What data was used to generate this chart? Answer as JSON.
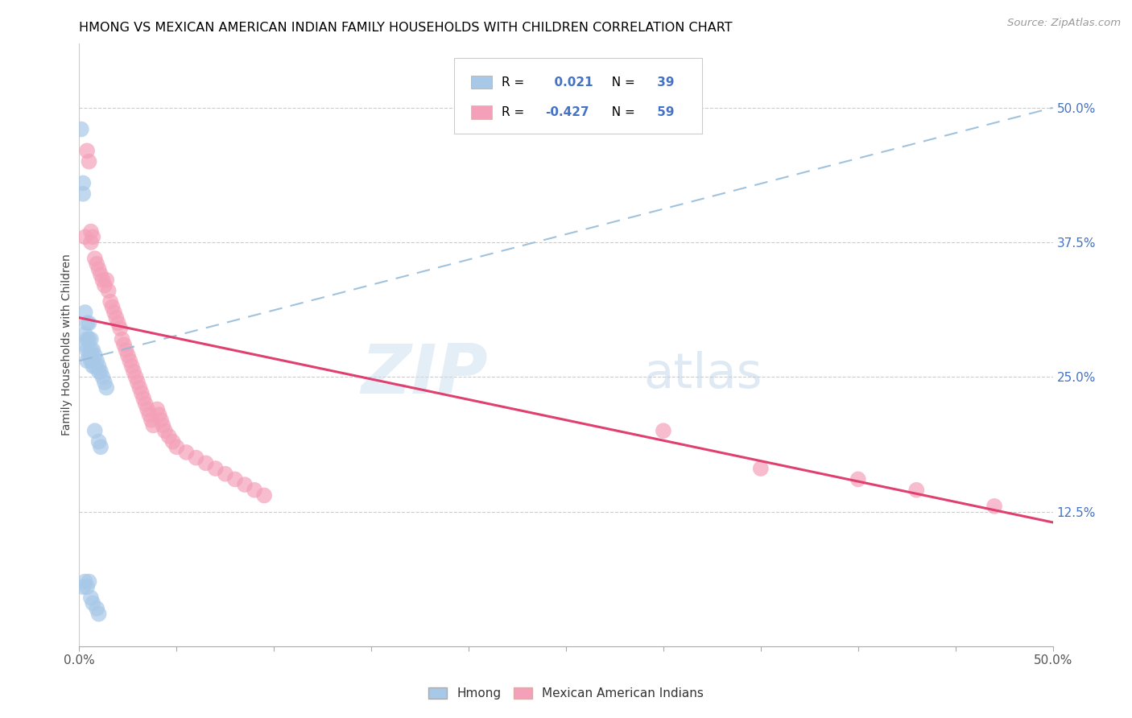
{
  "title": "HMONG VS MEXICAN AMERICAN INDIAN FAMILY HOUSEHOLDS WITH CHILDREN CORRELATION CHART",
  "source": "Source: ZipAtlas.com",
  "ylabel": "Family Households with Children",
  "watermark_zip": "ZIP",
  "watermark_atlas": "atlas",
  "xlim": [
    0.0,
    0.5
  ],
  "ylim": [
    0.0,
    0.56
  ],
  "yticks_right": [
    0.125,
    0.25,
    0.375,
    0.5
  ],
  "ytick_labels_right": [
    "12.5%",
    "25.0%",
    "37.5%",
    "50.0%"
  ],
  "hmong_color": "#a8c8e8",
  "mexican_color": "#f4a0b8",
  "hmong_line_color": "#90b8d8",
  "mexican_line_color": "#e04070",
  "R_hmong": 0.021,
  "N_hmong": 39,
  "R_mexican": -0.427,
  "N_mexican": 59,
  "hmong_x": [
    0.001,
    0.002,
    0.002,
    0.002,
    0.003,
    0.003,
    0.003,
    0.003,
    0.004,
    0.004,
    0.004,
    0.004,
    0.004,
    0.005,
    0.005,
    0.005,
    0.005,
    0.006,
    0.006,
    0.006,
    0.006,
    0.007,
    0.007,
    0.007,
    0.007,
    0.008,
    0.008,
    0.008,
    0.009,
    0.009,
    0.01,
    0.01,
    0.01,
    0.01,
    0.011,
    0.011,
    0.012,
    0.013,
    0.014
  ],
  "hmong_y": [
    0.48,
    0.43,
    0.42,
    0.055,
    0.31,
    0.29,
    0.28,
    0.06,
    0.3,
    0.285,
    0.275,
    0.265,
    0.055,
    0.3,
    0.285,
    0.27,
    0.06,
    0.285,
    0.275,
    0.265,
    0.045,
    0.275,
    0.265,
    0.26,
    0.04,
    0.27,
    0.26,
    0.2,
    0.265,
    0.035,
    0.26,
    0.255,
    0.19,
    0.03,
    0.255,
    0.185,
    0.25,
    0.245,
    0.24
  ],
  "mexican_x": [
    0.003,
    0.004,
    0.005,
    0.006,
    0.006,
    0.007,
    0.008,
    0.009,
    0.01,
    0.011,
    0.012,
    0.013,
    0.014,
    0.015,
    0.016,
    0.017,
    0.018,
    0.019,
    0.02,
    0.021,
    0.022,
    0.023,
    0.024,
    0.025,
    0.026,
    0.027,
    0.028,
    0.029,
    0.03,
    0.031,
    0.032,
    0.033,
    0.034,
    0.035,
    0.036,
    0.037,
    0.038,
    0.04,
    0.041,
    0.042,
    0.043,
    0.044,
    0.046,
    0.048,
    0.05,
    0.055,
    0.06,
    0.065,
    0.07,
    0.075,
    0.08,
    0.085,
    0.09,
    0.095,
    0.3,
    0.35,
    0.4,
    0.43,
    0.47
  ],
  "mexican_y": [
    0.38,
    0.46,
    0.45,
    0.385,
    0.375,
    0.38,
    0.36,
    0.355,
    0.35,
    0.345,
    0.34,
    0.335,
    0.34,
    0.33,
    0.32,
    0.315,
    0.31,
    0.305,
    0.3,
    0.295,
    0.285,
    0.28,
    0.275,
    0.27,
    0.265,
    0.26,
    0.255,
    0.25,
    0.245,
    0.24,
    0.235,
    0.23,
    0.225,
    0.22,
    0.215,
    0.21,
    0.205,
    0.22,
    0.215,
    0.21,
    0.205,
    0.2,
    0.195,
    0.19,
    0.185,
    0.18,
    0.175,
    0.17,
    0.165,
    0.16,
    0.155,
    0.15,
    0.145,
    0.14,
    0.2,
    0.165,
    0.155,
    0.145,
    0.13
  ]
}
